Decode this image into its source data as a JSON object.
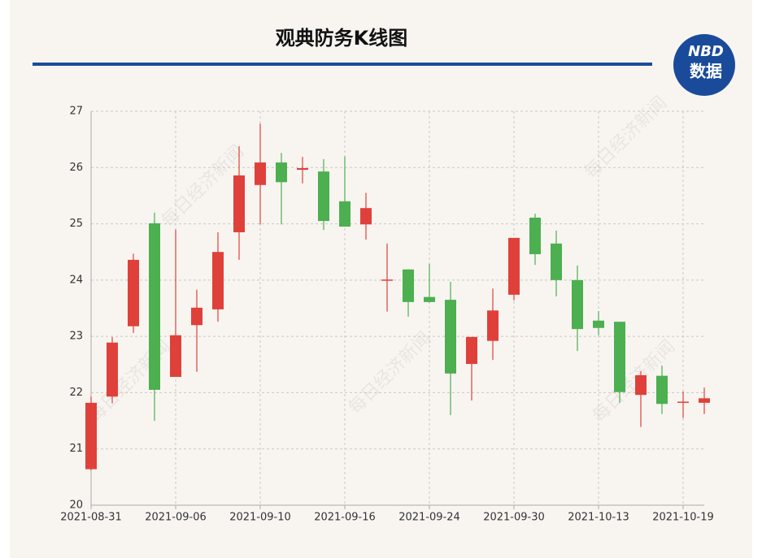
{
  "chart_data": {
    "type": "candlestick",
    "title": "观典防务K线图",
    "logo": [
      "NBD",
      "数据"
    ],
    "watermark": "每日经济新闻",
    "categories": [
      "2021-08-31",
      null,
      null,
      null,
      "2021-09-06",
      null,
      null,
      null,
      "2021-09-10",
      null,
      null,
      null,
      "2021-09-16",
      null,
      null,
      null,
      "2021-09-24",
      null,
      null,
      null,
      "2021-09-30",
      null,
      null,
      null,
      "2021-10-13",
      null,
      null,
      null,
      "2021-10-19",
      null
    ],
    "up_color": "#e0403a",
    "down_color": "#4caf50",
    "open": [
      20.64,
      21.93,
      23.18,
      25.01,
      22.28,
      23.2,
      23.48,
      24.85,
      25.69,
      26.09,
      25.96,
      25.93,
      25.4,
      24.99,
      24.0,
      24.19,
      23.7,
      23.65,
      22.51,
      22.92,
      23.74,
      25.11,
      24.65,
      24.0,
      23.28,
      23.26,
      21.96,
      22.3,
      21.82,
      21.82
    ],
    "high": [
      21.93,
      22.99,
      24.47,
      25.2,
      24.9,
      23.83,
      24.85,
      26.38,
      26.78,
      26.26,
      26.19,
      26.15,
      26.2,
      25.55,
      24.65,
      24.19,
      24.29,
      23.97,
      22.99,
      23.85,
      24.75,
      25.18,
      24.88,
      24.26,
      23.45,
      23.26,
      22.38,
      22.48,
      22.02,
      22.09
    ],
    "low": [
      20.62,
      21.81,
      23.06,
      21.5,
      22.28,
      22.37,
      23.26,
      24.36,
      24.99,
      24.99,
      25.72,
      24.89,
      24.95,
      24.72,
      23.44,
      23.35,
      23.6,
      21.6,
      21.86,
      22.58,
      23.64,
      24.27,
      23.71,
      22.74,
      23.02,
      21.82,
      21.39,
      21.62,
      21.55,
      21.62
    ],
    "close": [
      21.82,
      22.89,
      24.36,
      22.05,
      23.02,
      23.51,
      24.5,
      25.86,
      26.09,
      25.74,
      25.99,
      25.05,
      24.95,
      25.28,
      24.01,
      23.61,
      23.61,
      22.34,
      22.99,
      23.46,
      24.75,
      24.46,
      24.0,
      23.13,
      23.15,
      22.01,
      22.31,
      21.8,
      21.84,
      21.9
    ],
    "ylim": [
      20,
      27
    ],
    "yticks": [
      20,
      21,
      22,
      23,
      24,
      25,
      26,
      27
    ],
    "grid": true
  }
}
